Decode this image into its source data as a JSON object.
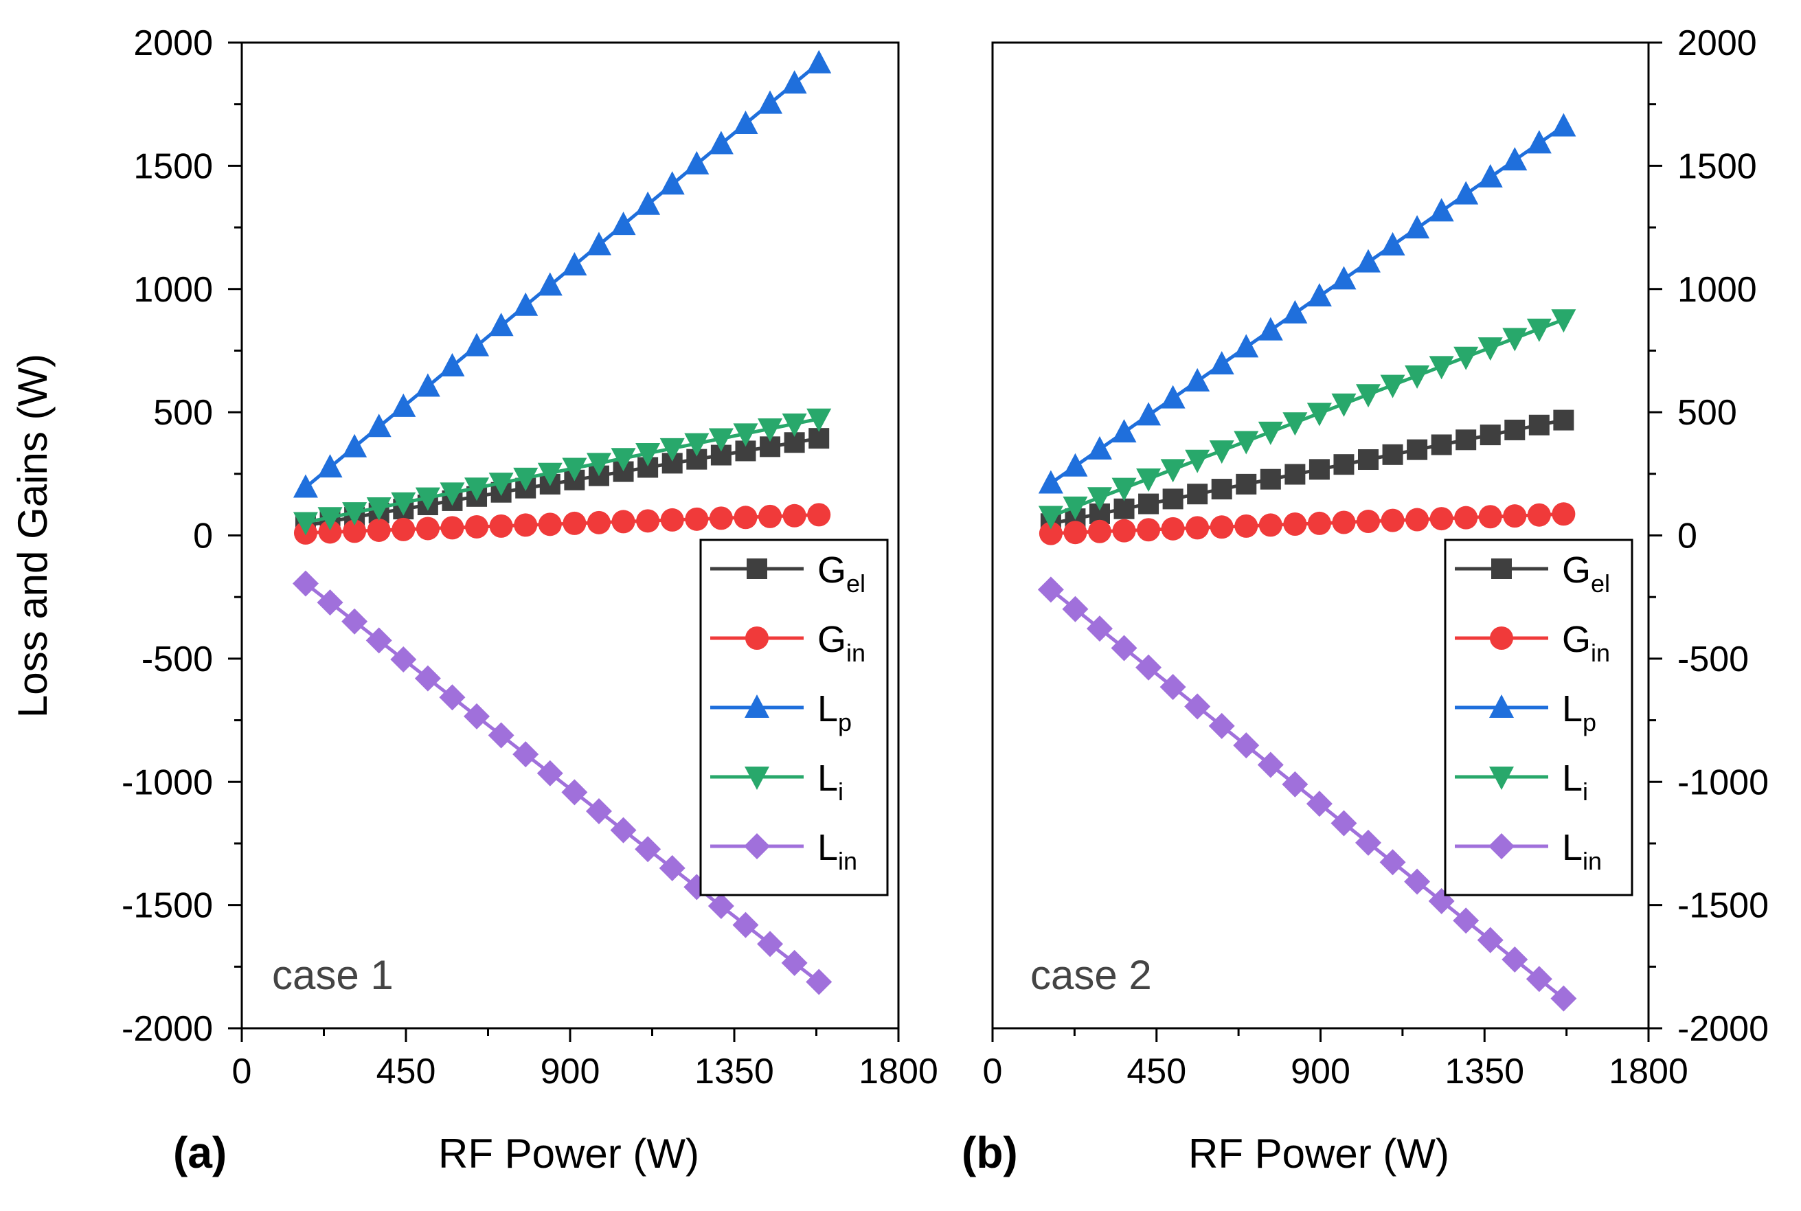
{
  "figure": {
    "y_axis_title": "Loss and Gains (W)",
    "x_axis_title": "RF Power (W)"
  },
  "legend": [
    {
      "base": "G",
      "sub": "el",
      "color": "#3f3f3f",
      "marker": "square"
    },
    {
      "base": "G",
      "sub": "in",
      "color": "#f03a3a",
      "marker": "circle"
    },
    {
      "base": "L",
      "sub": "p",
      "color": "#1f6fdc",
      "marker": "triangle-up"
    },
    {
      "base": "L",
      "sub": "i",
      "color": "#28a86b",
      "marker": "triangle-down"
    },
    {
      "base": "L",
      "sub": "in",
      "color": "#a070db",
      "marker": "diamond"
    }
  ],
  "chart_data": [
    {
      "type": "line",
      "panel_tag": "(a)",
      "annotation": "case 1",
      "xlabel": "RF Power (W)",
      "ylabel": "Loss and Gains (W)",
      "xlim": [
        0,
        1800
      ],
      "ylim": [
        -2000,
        2000
      ],
      "x_ticks": [
        "0",
        "450",
        "900",
        "1350",
        "1800"
      ],
      "y_ticks": [
        "2000",
        "1500",
        "1000",
        "500",
        "0",
        "-500",
        "-1000",
        "-1500",
        "-2000"
      ],
      "y_tick_side": "left",
      "x": [
        175,
        242,
        309,
        376,
        443,
        510,
        577,
        644,
        711,
        778,
        845,
        912,
        979,
        1046,
        1113,
        1180,
        1247,
        1314,
        1381,
        1448,
        1515,
        1582
      ],
      "series": [
        {
          "name": "Gel",
          "values": [
            40,
            57,
            74,
            91,
            107,
            124,
            141,
            158,
            175,
            192,
            208,
            225,
            242,
            259,
            276,
            293,
            309,
            326,
            343,
            360,
            377,
            394
          ]
        },
        {
          "name": "Gin",
          "values": [
            10,
            14,
            17,
            21,
            24,
            28,
            31,
            35,
            38,
            42,
            45,
            49,
            52,
            56,
            59,
            63,
            66,
            70,
            73,
            77,
            80,
            84
          ]
        },
        {
          "name": "Lp",
          "values": [
            195,
            277,
            359,
            441,
            523,
            605,
            687,
            769,
            851,
            933,
            1015,
            1097,
            1179,
            1261,
            1343,
            1425,
            1507,
            1589,
            1671,
            1753,
            1835,
            1917
          ]
        },
        {
          "name": "Li",
          "values": [
            53,
            73,
            93,
            113,
            133,
            153,
            173,
            193,
            213,
            233,
            253,
            273,
            293,
            313,
            333,
            353,
            373,
            393,
            413,
            433,
            453,
            473
          ]
        },
        {
          "name": "Lin",
          "values": [
            -195,
            -272,
            -349,
            -426,
            -503,
            -580,
            -657,
            -734,
            -811,
            -888,
            -965,
            -1042,
            -1119,
            -1196,
            -1273,
            -1350,
            -1427,
            -1504,
            -1581,
            -1658,
            -1735,
            -1812
          ]
        }
      ]
    },
    {
      "type": "line",
      "panel_tag": "(b)",
      "annotation": "case 2",
      "xlabel": "RF Power (W)",
      "ylabel": "",
      "xlim": [
        0,
        1800
      ],
      "ylim": [
        -2000,
        2000
      ],
      "x_ticks": [
        "0",
        "450",
        "900",
        "1350",
        "1800"
      ],
      "y_ticks": [
        "2000",
        "1500",
        "1000",
        "500",
        "0",
        "-500",
        "-1000",
        "-1500",
        "-2000"
      ],
      "y_tick_side": "right",
      "x": [
        160,
        227,
        294,
        361,
        428,
        495,
        562,
        629,
        696,
        763,
        830,
        897,
        964,
        1031,
        1098,
        1165,
        1232,
        1299,
        1366,
        1433,
        1500,
        1567
      ],
      "series": [
        {
          "name": "Gel",
          "values": [
            48,
            68,
            88,
            108,
            128,
            148,
            168,
            188,
            208,
            228,
            248,
            268,
            288,
            308,
            328,
            348,
            368,
            388,
            408,
            428,
            448,
            468
          ]
        },
        {
          "name": "Gin",
          "values": [
            8,
            12,
            16,
            19,
            23,
            27,
            31,
            34,
            38,
            42,
            46,
            49,
            53,
            57,
            61,
            64,
            68,
            72,
            76,
            79,
            83,
            87
          ]
        },
        {
          "name": "Lp",
          "values": [
            212,
            281,
            350,
            419,
            488,
            557,
            626,
            695,
            764,
            833,
            902,
            971,
            1040,
            1109,
            1178,
            1247,
            1316,
            1385,
            1454,
            1523,
            1592,
            1661
          ]
        },
        {
          "name": "Li",
          "values": [
            78,
            116,
            154,
            192,
            230,
            268,
            306,
            344,
            382,
            420,
            458,
            496,
            534,
            572,
            610,
            648,
            686,
            724,
            762,
            800,
            838,
            876
          ]
        },
        {
          "name": "Lin",
          "values": [
            -220,
            -299,
            -378,
            -457,
            -536,
            -615,
            -694,
            -773,
            -852,
            -931,
            -1010,
            -1089,
            -1168,
            -1247,
            -1326,
            -1405,
            -1484,
            -1563,
            -1642,
            -1721,
            -1800,
            -1879
          ]
        }
      ]
    }
  ]
}
